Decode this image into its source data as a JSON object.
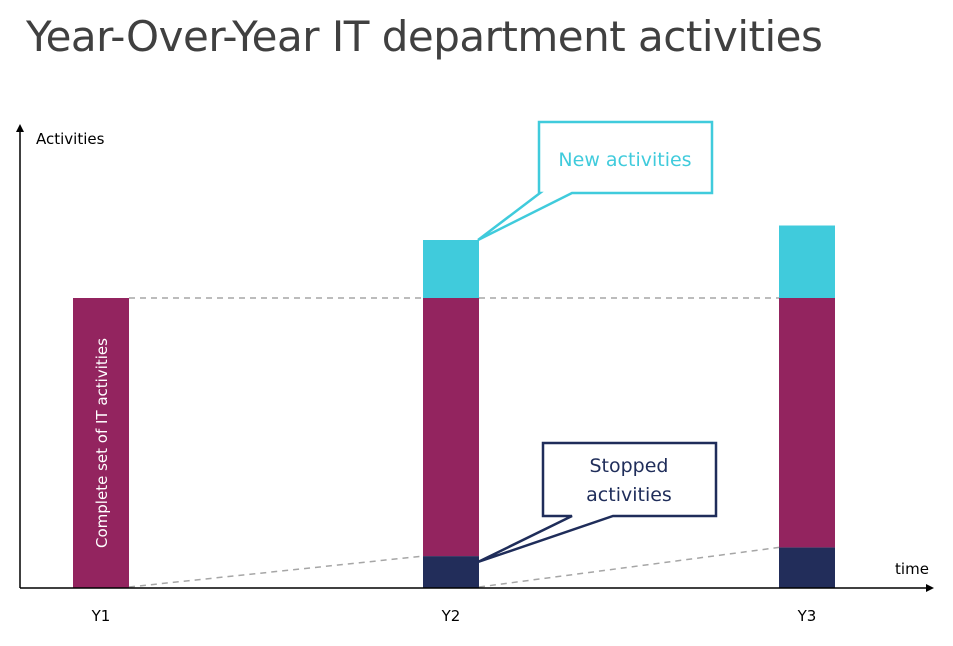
{
  "chart_data": {
    "type": "bar",
    "title": "Year-Over-Year IT department activities",
    "ylabel": "Activities",
    "xlabel": "time",
    "categories": [
      "Y1",
      "Y2",
      "Y3"
    ],
    "ylim": [
      0,
      100
    ],
    "series": [
      {
        "key": "stopped",
        "values": [
          0,
          11,
          14
        ],
        "color": "#222d5a"
      },
      {
        "key": "existing",
        "values": [
          100,
          89,
          86
        ],
        "color": "#93245f"
      },
      {
        "key": "new",
        "values": [
          0,
          20,
          25
        ],
        "color": "#40cbdc"
      }
    ],
    "baseline_total": 100,
    "bar_label": "Complete set of IT activities",
    "annotations": {
      "new": "New activities",
      "stopped_line1": "Stopped",
      "stopped_line2": "activities"
    },
    "colors": {
      "axis": "#000000",
      "guide": "#a6a6a6",
      "callout_new": "#40cbdc",
      "callout_stopped": "#1f2d5a",
      "title": "#404040"
    }
  }
}
